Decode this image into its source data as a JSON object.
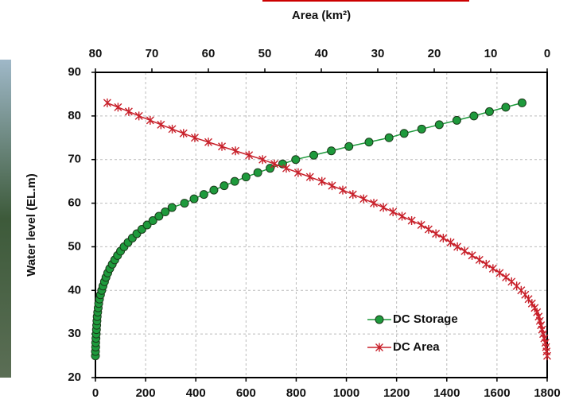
{
  "chart_data": {
    "type": "line",
    "title": "Area (km²)",
    "y_label": "Water level (EL.m)",
    "xlim": [
      0,
      1800
    ],
    "xticks": [
      0,
      200,
      400,
      600,
      800,
      1000,
      1200,
      1400,
      1600,
      1800
    ],
    "x2lim": [
      80,
      0
    ],
    "x2ticks": [
      80,
      70,
      60,
      50,
      40,
      30,
      20,
      10,
      0
    ],
    "ylim": [
      20,
      90
    ],
    "yticks": [
      20,
      30,
      40,
      50,
      60,
      70,
      80,
      90
    ],
    "grid": true,
    "legend": "lower right",
    "series": [
      {
        "name": "DC Storage",
        "color": "#1e9a3c",
        "marker": "circle",
        "x": [
          0,
          0,
          1,
          1,
          2,
          3,
          4,
          5,
          6,
          7,
          9,
          11,
          13,
          16,
          20,
          25,
          30,
          36,
          42,
          49,
          57,
          67,
          77,
          88,
          100,
          114,
          130,
          147,
          165,
          185,
          206,
          229,
          253,
          278,
          305,
          355,
          393,
          432,
          472,
          513,
          555,
          600,
          647,
          696,
          746,
          798,
          870,
          940,
          1010,
          1090,
          1170,
          1230,
          1300,
          1370,
          1440,
          1508,
          1570,
          1635,
          1700
        ],
        "values": [
          25,
          26,
          27,
          28,
          29,
          30,
          31,
          32,
          33,
          34,
          35,
          36,
          37,
          38,
          39,
          40,
          41,
          42,
          43,
          44,
          45,
          46,
          47,
          48,
          49,
          50,
          51,
          52,
          53,
          54,
          55,
          56,
          57,
          58,
          59,
          60,
          61,
          62,
          63,
          64,
          65,
          66,
          67,
          68,
          69,
          70,
          71,
          72,
          73,
          74,
          75,
          76,
          77,
          78,
          79,
          80,
          81,
          82,
          83
        ]
      },
      {
        "name": "DC Area",
        "color": "#c8202a",
        "marker": "star",
        "axis": "x2",
        "x": [
          0,
          0.1,
          0.2,
          0.3,
          0.5,
          0.7,
          0.9,
          1.1,
          1.3,
          1.5,
          1.8,
          2.2,
          2.7,
          3.3,
          3.9,
          4.6,
          5.4,
          6.3,
          7.3,
          8.4,
          9.6,
          10.8,
          12.0,
          13.3,
          14.6,
          15.9,
          17.1,
          18.4,
          19.7,
          21.0,
          22.3,
          24.0,
          25.7,
          27.3,
          29.0,
          30.7,
          32.5,
          34.4,
          36.2,
          38.1,
          39.9,
          42.0,
          44.1,
          46.2,
          48.3,
          50.4,
          52.8,
          55.2,
          57.6,
          60.0,
          62.4,
          64.4,
          66.4,
          68.4,
          70.3,
          72.3,
          74.1,
          76.0,
          77.9
        ],
        "values": [
          25,
          26,
          27,
          28,
          29,
          30,
          31,
          32,
          33,
          34,
          35,
          36,
          37,
          38,
          39,
          40,
          41,
          42,
          43,
          44,
          45,
          46,
          47,
          48,
          49,
          50,
          51,
          52,
          53,
          54,
          55,
          56,
          57,
          58,
          59,
          60,
          61,
          62,
          63,
          64,
          65,
          66,
          67,
          68,
          69,
          70,
          71,
          72,
          73,
          74,
          75,
          76,
          77,
          78,
          79,
          80,
          81,
          82,
          83
        ]
      }
    ]
  }
}
